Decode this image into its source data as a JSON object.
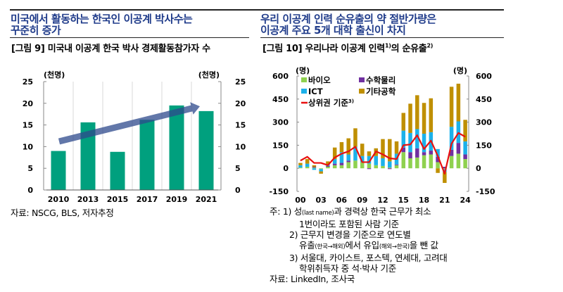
{
  "left_panel": {
    "headline_line1": "미국에서 활동하는 한국인 이공계 박사수는",
    "headline_line2": "꾸준히 증가",
    "figure_title": "[그림 9] 미국내 이공계 한국 박사 경제활동참가자 수",
    "source": "자료: NSCG, BLS, 저자추정"
  },
  "right_panel": {
    "headline_line1": "우리 이공계 인력 순유출의 약 절반가량은",
    "headline_line2": "이공계 주요 5개 대학 출신이 차지",
    "figure_title_main": "[그림 10] 우리나라 이공계 인력",
    "figure_title_sup1": "1)",
    "figure_title_mid": "의 순유출",
    "figure_title_sup2": "2)",
    "notes": {
      "prefix": "주:",
      "n1_a": "1) 성",
      "n1_small": "(last name)",
      "n1_b": "과 경력상 한국 근무가 최소",
      "n1_line2": "1번이라도 포함된 사람 기준",
      "n2_line1": "2) 근무지 변경을 기준으로 연도별",
      "n2_a": "유출",
      "n2_small1": "(한국→해외)",
      "n2_b": "에서 유입",
      "n2_small2": "(해외→한국)",
      "n2_c": "을 뺀 값",
      "n3_line1": "3) 서울대, 카이스트, 포스텍, 연세대, 고려대",
      "n3_line2": "학위취득자 중 석·박사 기준"
    },
    "source": "자료: LinkedIn, 조사국"
  },
  "colors": {
    "headline": "#1f3b8a",
    "bar_green": "#00a07e",
    "arrow": "#2e4a8c",
    "bio": "#8fd14f",
    "math": "#7030a0",
    "ict": "#1cb1ea",
    "other": "#bf8f00",
    "line": "#e81010"
  },
  "chart_data": [
    {
      "type": "bar",
      "title": "[그림 9] 미국내 이공계 한국 박사 경제활동참가자 수",
      "categories": [
        "2010",
        "2013",
        "2015",
        "2017",
        "2019",
        "2021"
      ],
      "values": [
        9.0,
        15.6,
        8.8,
        16.2,
        19.5,
        18.2
      ],
      "ylabel_left": "(천명)",
      "ylabel_right": "(천명)",
      "ylim": [
        0,
        25
      ],
      "yticks": [
        0,
        5,
        10,
        15,
        20,
        25
      ],
      "grid": "vertical",
      "annotation": "upward trend arrow",
      "legend": "none"
    },
    {
      "type": "bar",
      "stacked": true,
      "title": "[그림 10] 우리나라 이공계 인력의 순유출",
      "x": [
        "00",
        "01",
        "02",
        "03",
        "04",
        "05",
        "06",
        "07",
        "08",
        "09",
        "10",
        "11",
        "12",
        "13",
        "14",
        "15",
        "16",
        "17",
        "18",
        "19",
        "20",
        "21",
        "22",
        "23",
        "24"
      ],
      "xticks": [
        "00",
        "03",
        "06",
        "09",
        "12",
        "15",
        "18",
        "21",
        "24"
      ],
      "ylabel_left": "(명)",
      "ylabel_right": "(명)",
      "ylim": [
        -150,
        600
      ],
      "yticks": [
        -150,
        0,
        150,
        300,
        450,
        600
      ],
      "legend_position": "top-left",
      "series": [
        {
          "name": "바이오",
          "type": "bar",
          "values": [
            5,
            10,
            5,
            -5,
            10,
            20,
            20,
            40,
            50,
            40,
            30,
            20,
            15,
            5,
            20,
            105,
            65,
            70,
            85,
            90,
            40,
            -5,
            80,
            95,
            60
          ]
        },
        {
          "name": "수학물리",
          "type": "bar",
          "values": [
            0,
            0,
            5,
            0,
            5,
            10,
            15,
            10,
            0,
            0,
            -5,
            0,
            0,
            -5,
            5,
            30,
            40,
            60,
            20,
            25,
            35,
            10,
            40,
            70,
            30
          ]
        },
        {
          "name": "ICT",
          "type": "bar",
          "values": [
            15,
            20,
            -10,
            -15,
            10,
            30,
            70,
            40,
            90,
            40,
            50,
            60,
            50,
            40,
            70,
            110,
            125,
            125,
            120,
            120,
            50,
            -20,
            150,
            140,
            85
          ]
        },
        {
          "name": "기타공학",
          "type": "bar",
          "values": [
            15,
            30,
            10,
            -15,
            20,
            75,
            65,
            105,
            120,
            80,
            30,
            50,
            125,
            145,
            80,
            115,
            190,
            220,
            200,
            220,
            -30,
            -70,
            260,
            245,
            140
          ]
        },
        {
          "name": "상위권 기준3)",
          "type": "line",
          "values": [
            50,
            75,
            35,
            35,
            20,
            70,
            95,
            110,
            140,
            40,
            40,
            110,
            90,
            65,
            60,
            150,
            155,
            215,
            125,
            180,
            80,
            -35,
            160,
            230,
            205
          ]
        }
      ]
    }
  ]
}
